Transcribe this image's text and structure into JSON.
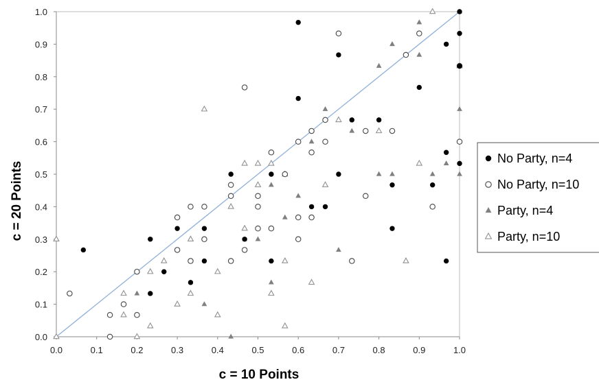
{
  "chart_data": {
    "type": "scatter",
    "title": "",
    "xlabel": "c = 10 Points",
    "ylabel": "c = 20 Points",
    "xlim": [
      0,
      1
    ],
    "ylim": [
      0,
      1
    ],
    "xticks": [
      "0.0",
      "0.1",
      "0.2",
      "0.3",
      "0.4",
      "0.5",
      "0.6",
      "0.7",
      "0.8",
      "0.9",
      "1.0"
    ],
    "yticks": [
      "0.0",
      "0.1",
      "0.2",
      "0.3",
      "0.4",
      "0.5",
      "0.6",
      "0.7",
      "0.8",
      "0.9",
      "1.0"
    ],
    "grid": false,
    "legend_position": "right",
    "diagonal_line": {
      "from": [
        0,
        0
      ],
      "to": [
        1,
        1
      ],
      "color": "#8fb0d8"
    },
    "series": [
      {
        "name": "No Party, n=4",
        "marker": "filled-circle",
        "color": "#000000",
        "points": [
          [
            0.067,
            0.267
          ],
          [
            0.233,
            0.3
          ],
          [
            0.233,
            0.133
          ],
          [
            0.267,
            0.2
          ],
          [
            0.3,
            0.333
          ],
          [
            0.333,
            0.167
          ],
          [
            0.367,
            0.333
          ],
          [
            0.367,
            0.233
          ],
          [
            0.433,
            0.5
          ],
          [
            0.467,
            0.3
          ],
          [
            0.533,
            0.5
          ],
          [
            0.533,
            0.233
          ],
          [
            0.6,
            0.967
          ],
          [
            0.6,
            0.733
          ],
          [
            0.633,
            0.4
          ],
          [
            0.667,
            0.4
          ],
          [
            0.7,
            0.867
          ],
          [
            0.7,
            0.5
          ],
          [
            0.733,
            0.667
          ],
          [
            0.8,
            0.667
          ],
          [
            0.833,
            0.467
          ],
          [
            0.833,
            0.333
          ],
          [
            0.9,
            0.767
          ],
          [
            0.933,
            0.467
          ],
          [
            0.967,
            0.9
          ],
          [
            0.967,
            0.567
          ],
          [
            0.967,
            0.233
          ],
          [
            1.0,
            1.0
          ],
          [
            1.0,
            0.933
          ],
          [
            1.0,
            0.833
          ],
          [
            1.0,
            0.533
          ]
        ]
      },
      {
        "name": "No Party, n=10",
        "marker": "open-circle",
        "color": "#444444",
        "points": [
          [
            0.033,
            0.133
          ],
          [
            0.133,
            0.067
          ],
          [
            0.133,
            0.0
          ],
          [
            0.167,
            0.1
          ],
          [
            0.2,
            0.2
          ],
          [
            0.2,
            0.067
          ],
          [
            0.3,
            0.367
          ],
          [
            0.3,
            0.267
          ],
          [
            0.333,
            0.4
          ],
          [
            0.333,
            0.233
          ],
          [
            0.367,
            0.4
          ],
          [
            0.367,
            0.3
          ],
          [
            0.433,
            0.467
          ],
          [
            0.433,
            0.433
          ],
          [
            0.433,
            0.233
          ],
          [
            0.467,
            0.767
          ],
          [
            0.467,
            0.267
          ],
          [
            0.5,
            0.433
          ],
          [
            0.5,
            0.4
          ],
          [
            0.5,
            0.333
          ],
          [
            0.533,
            0.567
          ],
          [
            0.533,
            0.333
          ],
          [
            0.567,
            0.5
          ],
          [
            0.6,
            0.6
          ],
          [
            0.6,
            0.367
          ],
          [
            0.6,
            0.3
          ],
          [
            0.633,
            0.633
          ],
          [
            0.633,
            0.567
          ],
          [
            0.633,
            0.367
          ],
          [
            0.667,
            0.667
          ],
          [
            0.667,
            0.6
          ],
          [
            0.7,
            0.933
          ],
          [
            0.733,
            0.233
          ],
          [
            0.767,
            0.633
          ],
          [
            0.767,
            0.433
          ],
          [
            0.833,
            0.633
          ],
          [
            0.867,
            0.867
          ],
          [
            0.9,
            0.933
          ],
          [
            0.933,
            0.4
          ],
          [
            1.0,
            0.833
          ],
          [
            1.0,
            0.6
          ]
        ]
      },
      {
        "name": "Party, n=4",
        "marker": "filled-triangle",
        "color": "#808080",
        "points": [
          [
            0.2,
            0.133
          ],
          [
            0.367,
            0.1
          ],
          [
            0.433,
            0.0
          ],
          [
            0.467,
            0.3
          ],
          [
            0.5,
            0.3
          ],
          [
            0.533,
            0.467
          ],
          [
            0.533,
            0.167
          ],
          [
            0.567,
            0.367
          ],
          [
            0.6,
            0.433
          ],
          [
            0.633,
            0.6
          ],
          [
            0.667,
            0.7
          ],
          [
            0.7,
            0.267
          ],
          [
            0.733,
            0.633
          ],
          [
            0.8,
            0.833
          ],
          [
            0.8,
            0.5
          ],
          [
            0.833,
            0.9
          ],
          [
            0.833,
            0.5
          ],
          [
            0.9,
            0.967
          ],
          [
            0.9,
            0.867
          ],
          [
            0.933,
            0.5
          ],
          [
            0.967,
            0.533
          ],
          [
            1.0,
            1.0
          ],
          [
            1.0,
            0.7
          ],
          [
            1.0,
            0.5
          ]
        ]
      },
      {
        "name": "Party, n=10",
        "marker": "open-triangle",
        "color": "#909090",
        "points": [
          [
            0.0,
            0.3
          ],
          [
            0.0,
            0.0
          ],
          [
            0.167,
            0.133
          ],
          [
            0.167,
            0.067
          ],
          [
            0.2,
            0.0
          ],
          [
            0.233,
            0.2
          ],
          [
            0.233,
            0.033
          ],
          [
            0.267,
            0.233
          ],
          [
            0.3,
            0.1
          ],
          [
            0.333,
            0.3
          ],
          [
            0.333,
            0.133
          ],
          [
            0.367,
            0.7
          ],
          [
            0.4,
            0.2
          ],
          [
            0.4,
            0.067
          ],
          [
            0.433,
            0.4
          ],
          [
            0.467,
            0.533
          ],
          [
            0.467,
            0.333
          ],
          [
            0.5,
            0.533
          ],
          [
            0.5,
            0.467
          ],
          [
            0.533,
            0.533
          ],
          [
            0.533,
            0.133
          ],
          [
            0.567,
            0.5
          ],
          [
            0.567,
            0.233
          ],
          [
            0.567,
            0.033
          ],
          [
            0.633,
            0.167
          ],
          [
            0.667,
            0.467
          ],
          [
            0.7,
            0.667
          ],
          [
            0.8,
            0.633
          ],
          [
            0.867,
            0.233
          ],
          [
            0.9,
            0.533
          ],
          [
            0.933,
            1.0
          ],
          [
            1.0,
            0.833
          ]
        ]
      }
    ]
  }
}
